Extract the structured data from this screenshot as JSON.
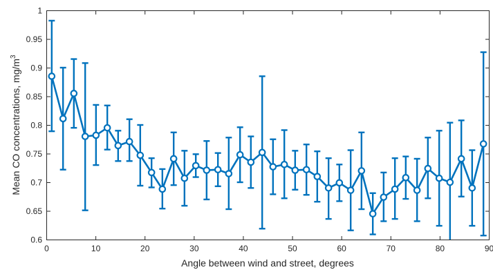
{
  "chart_data": {
    "type": "line",
    "title": "",
    "xlabel": "Angle between wind and street, degrees",
    "ylabel": "Mean CO concentrations, mg/m",
    "ylabel_superscript": "3",
    "xlim": [
      0,
      90
    ],
    "ylim": [
      0.6,
      1.0
    ],
    "xticks": [
      0,
      10,
      20,
      30,
      40,
      50,
      60,
      70,
      80,
      90
    ],
    "xtick_labels": [
      "0",
      "10",
      "20",
      "30",
      "40",
      "50",
      "60",
      "70",
      "80",
      "90"
    ],
    "yticks": [
      0.6,
      0.65,
      0.7,
      0.75,
      0.8,
      0.85,
      0.9,
      0.95,
      1.0
    ],
    "ytick_labels": [
      "0.6",
      "0.65",
      "0.7",
      "0.75",
      "0.8",
      "0.85",
      "0.9",
      "0.95",
      "1"
    ],
    "grid": false,
    "legend": false,
    "color": "#0072BD",
    "series": [
      {
        "x": [
          1.1,
          3.4,
          5.6,
          7.9,
          10.1,
          12.4,
          14.6,
          16.9,
          19.1,
          21.4,
          23.6,
          25.9,
          28.1,
          30.4,
          32.6,
          34.9,
          37.1,
          39.4,
          41.6,
          43.9,
          46.1,
          48.4,
          50.6,
          52.9,
          55.1,
          57.4,
          59.6,
          61.9,
          64.1,
          66.4,
          68.6,
          70.9,
          73.1,
          75.4,
          77.6,
          79.9,
          82.1,
          84.4,
          86.6,
          88.9
        ],
        "y": [
          0.885,
          0.811,
          0.855,
          0.78,
          0.782,
          0.795,
          0.764,
          0.771,
          0.747,
          0.717,
          0.688,
          0.741,
          0.707,
          0.729,
          0.721,
          0.722,
          0.715,
          0.748,
          0.735,
          0.752,
          0.727,
          0.731,
          0.721,
          0.722,
          0.71,
          0.69,
          0.699,
          0.686,
          0.72,
          0.645,
          0.674,
          0.688,
          0.708,
          0.686,
          0.724,
          0.707,
          0.7,
          0.741,
          0.69,
          0.767
        ],
        "upper": [
          0.982,
          0.9,
          0.915,
          0.908,
          0.835,
          0.834,
          0.79,
          0.81,
          0.8,
          0.742,
          0.723,
          0.787,
          0.755,
          0.749,
          0.772,
          0.751,
          0.778,
          0.796,
          0.78,
          0.885,
          0.775,
          0.791,
          0.755,
          0.766,
          0.754,
          0.742,
          0.731,
          0.756,
          0.787,
          0.681,
          0.717,
          0.742,
          0.745,
          0.741,
          0.778,
          0.79,
          0.804,
          0.808,
          0.756,
          0.927
        ],
        "lower": [
          0.789,
          0.722,
          0.795,
          0.651,
          0.73,
          0.757,
          0.737,
          0.737,
          0.694,
          0.691,
          0.654,
          0.695,
          0.659,
          0.709,
          0.67,
          0.693,
          0.653,
          0.7,
          0.69,
          0.619,
          0.679,
          0.672,
          0.687,
          0.678,
          0.666,
          0.636,
          0.667,
          0.616,
          0.653,
          0.609,
          0.632,
          0.636,
          0.671,
          0.632,
          0.672,
          0.624,
          0.596,
          0.675,
          0.624,
          0.607
        ]
      }
    ]
  }
}
